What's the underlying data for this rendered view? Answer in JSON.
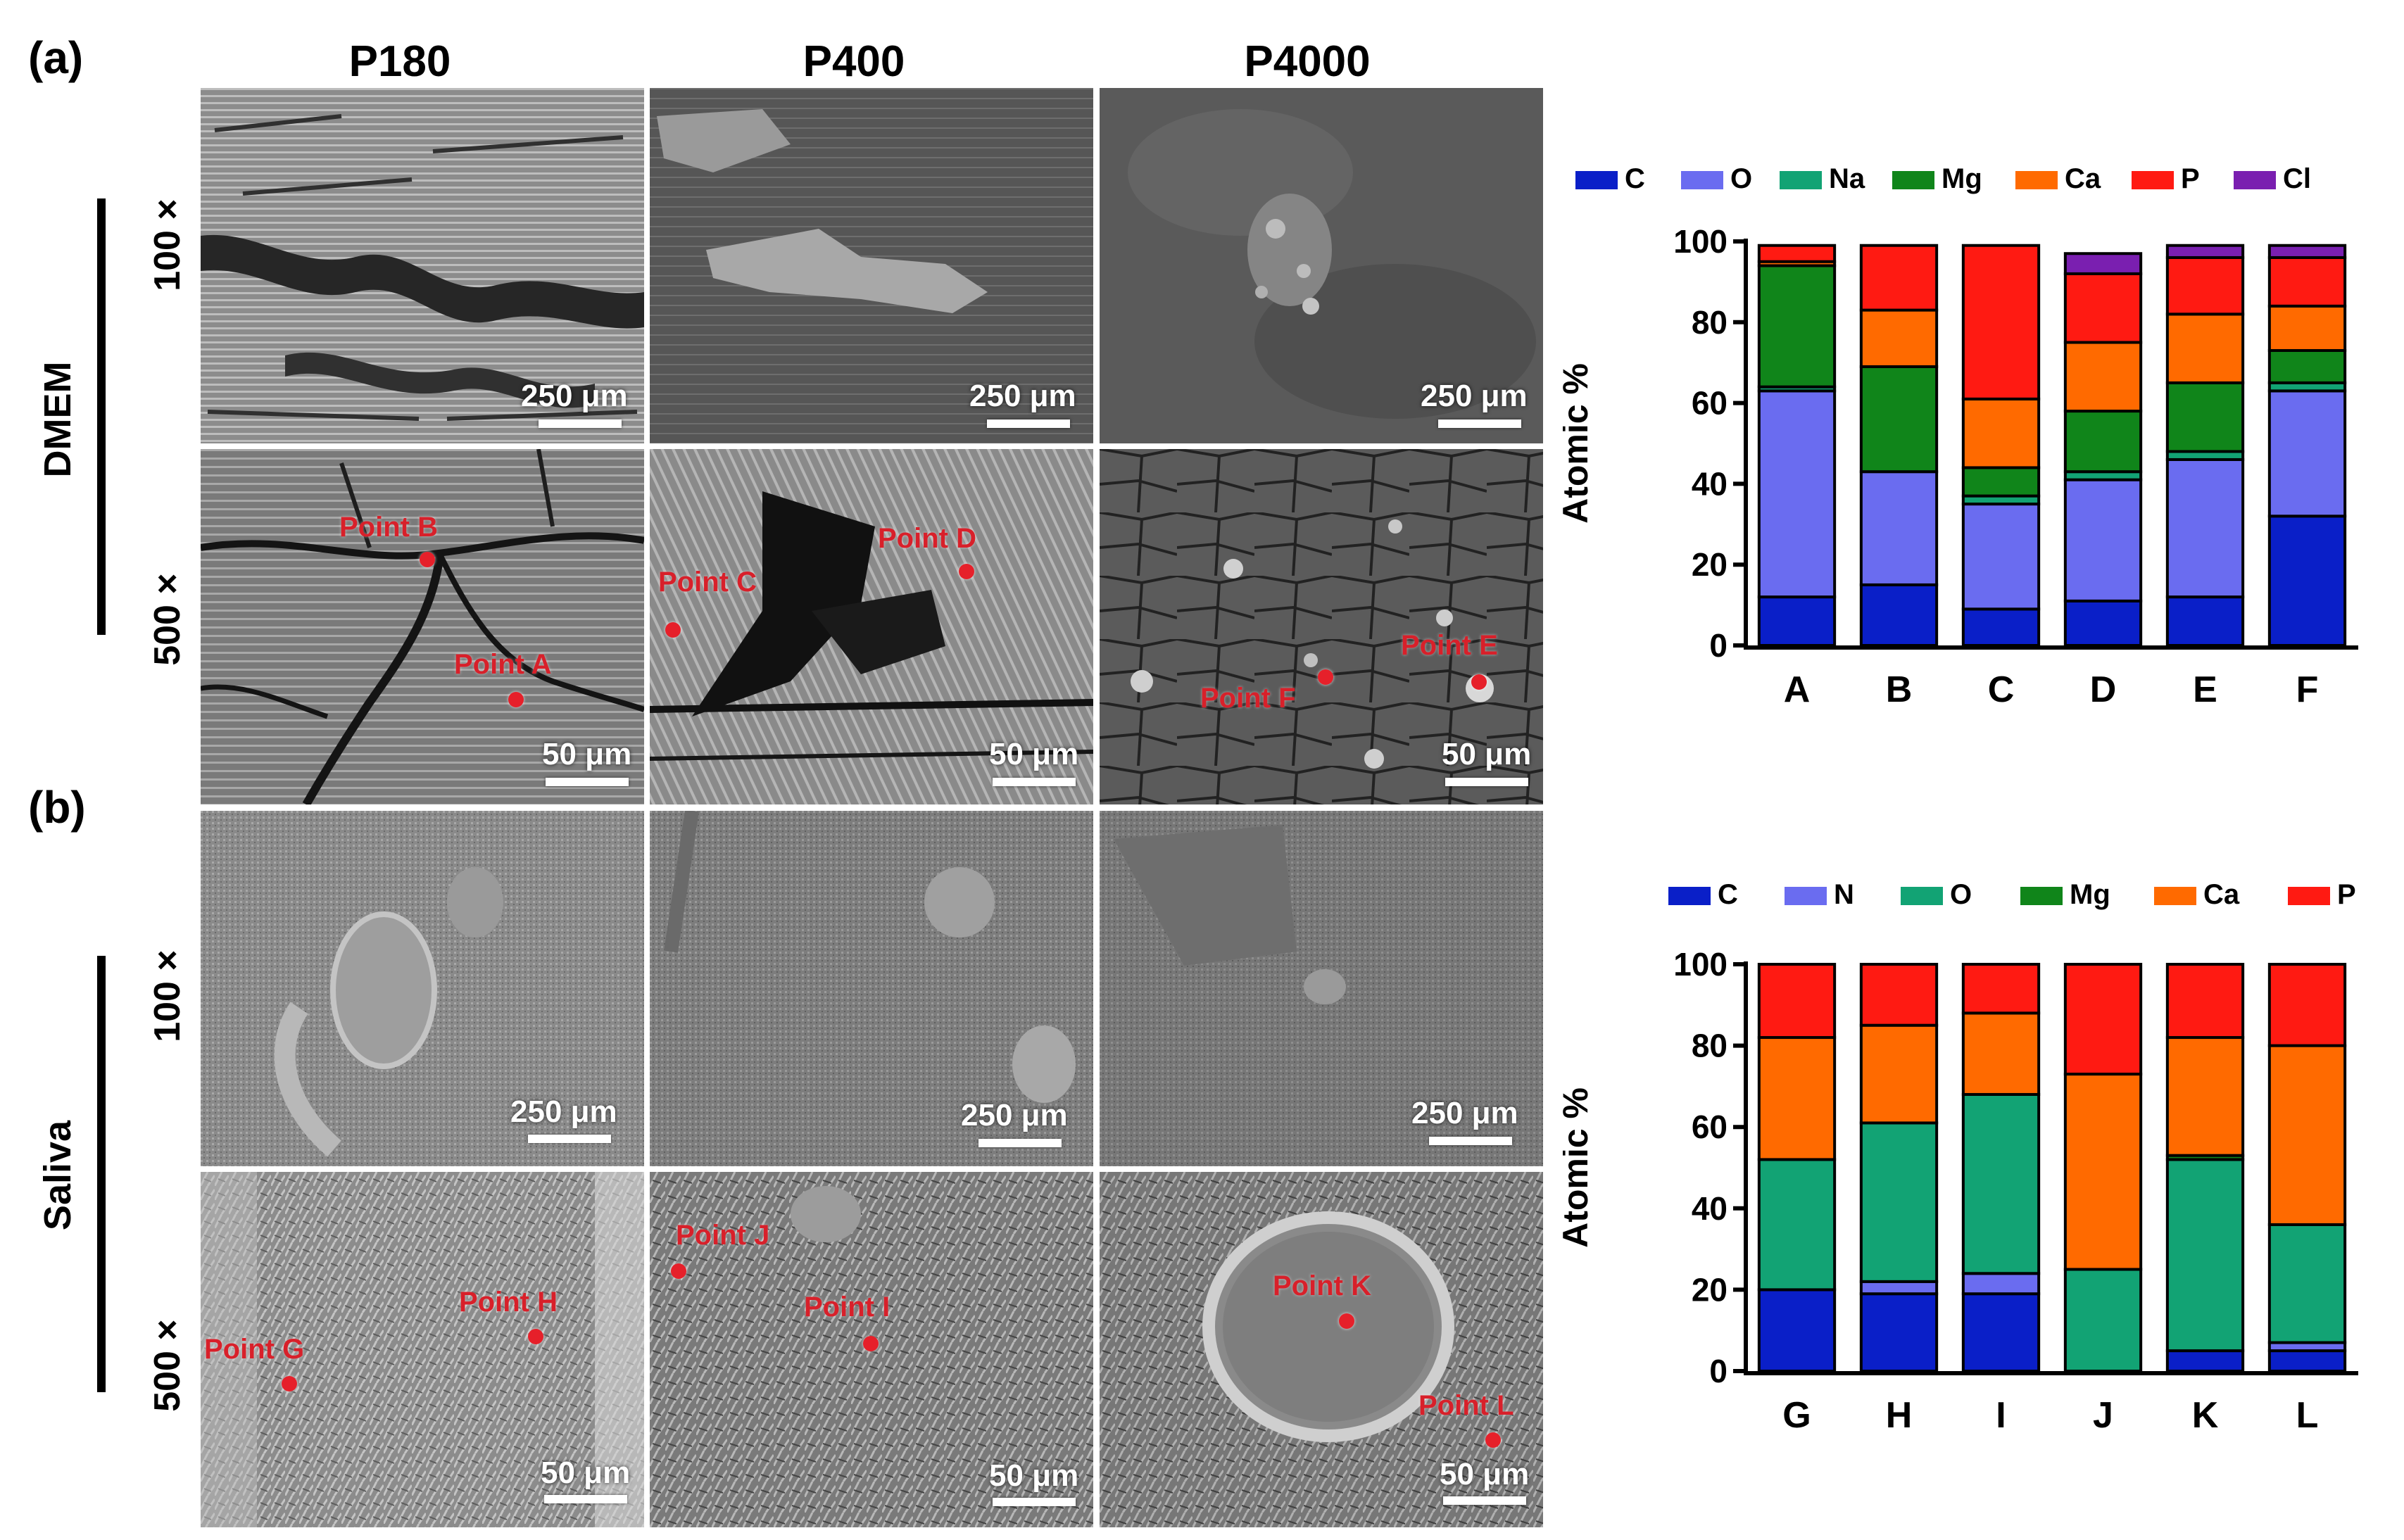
{
  "panels": {
    "a_label": "(a)",
    "b_label": "(b)"
  },
  "columns": [
    "P180",
    "P400",
    "P4000"
  ],
  "groups": {
    "a_medium": "DMEM",
    "b_medium": "Saliva"
  },
  "magnifications": {
    "low": "100 ×",
    "high": "500 ×"
  },
  "scale_bars": {
    "low": "250 μm",
    "high": "50 μm"
  },
  "points": {
    "A": "Point A",
    "B": "Point B",
    "C": "Point C",
    "D": "Point D",
    "E": "Point E",
    "F": "Point F",
    "G": "Point G",
    "H": "Point H",
    "I": "Point I",
    "J": "Point J",
    "K": "Point K",
    "L": "Point L"
  },
  "chart_data": [
    {
      "type": "bar",
      "stacked": true,
      "title": "",
      "xlabel": "",
      "ylabel": "Atomic %",
      "ylim": [
        0,
        100
      ],
      "yticks": [
        0,
        20,
        40,
        60,
        80,
        100
      ],
      "legend_position": "top",
      "categories": [
        "A",
        "B",
        "C",
        "D",
        "E",
        "F"
      ],
      "series": [
        {
          "name": "C",
          "color": "#0a1fc8",
          "values": [
            12,
            15,
            9,
            11,
            12,
            32
          ]
        },
        {
          "name": "O",
          "color": "#6a6cf0",
          "values": [
            51,
            28,
            26,
            30,
            34,
            31
          ]
        },
        {
          "name": "Na",
          "color": "#12a374",
          "values": [
            1,
            0,
            2,
            2,
            2,
            2
          ]
        },
        {
          "name": "Mg",
          "color": "#10851a",
          "values": [
            30,
            26,
            7,
            15,
            17,
            8
          ]
        },
        {
          "name": "Ca",
          "color": "#ff6a00",
          "values": [
            1,
            14,
            17,
            17,
            17,
            11
          ]
        },
        {
          "name": "P",
          "color": "#ff1a12",
          "values": [
            4,
            16,
            38,
            17,
            14,
            12
          ]
        },
        {
          "name": "Cl",
          "color": "#7a1fb0",
          "values": [
            0,
            0,
            0,
            5,
            3,
            3
          ]
        }
      ]
    },
    {
      "type": "bar",
      "stacked": true,
      "title": "",
      "xlabel": "",
      "ylabel": "Atomic %",
      "ylim": [
        0,
        100
      ],
      "yticks": [
        0,
        20,
        40,
        60,
        80,
        100
      ],
      "legend_position": "top",
      "categories": [
        "G",
        "H",
        "I",
        "J",
        "K",
        "L"
      ],
      "series": [
        {
          "name": "C",
          "color": "#0a1fc8",
          "values": [
            20,
            19,
            19,
            0,
            5,
            5
          ]
        },
        {
          "name": "N",
          "color": "#6a6cf0",
          "values": [
            0,
            3,
            5,
            0,
            0,
            2
          ]
        },
        {
          "name": "O",
          "color": "#12a374",
          "values": [
            32,
            39,
            44,
            25,
            47,
            29
          ]
        },
        {
          "name": "Mg",
          "color": "#10851a",
          "values": [
            0,
            0,
            0,
            0,
            1,
            0
          ]
        },
        {
          "name": "Ca",
          "color": "#ff6a00",
          "values": [
            30,
            24,
            20,
            48,
            29,
            44
          ]
        },
        {
          "name": "P",
          "color": "#ff1a12",
          "values": [
            18,
            15,
            12,
            27,
            18,
            20
          ]
        }
      ]
    }
  ]
}
